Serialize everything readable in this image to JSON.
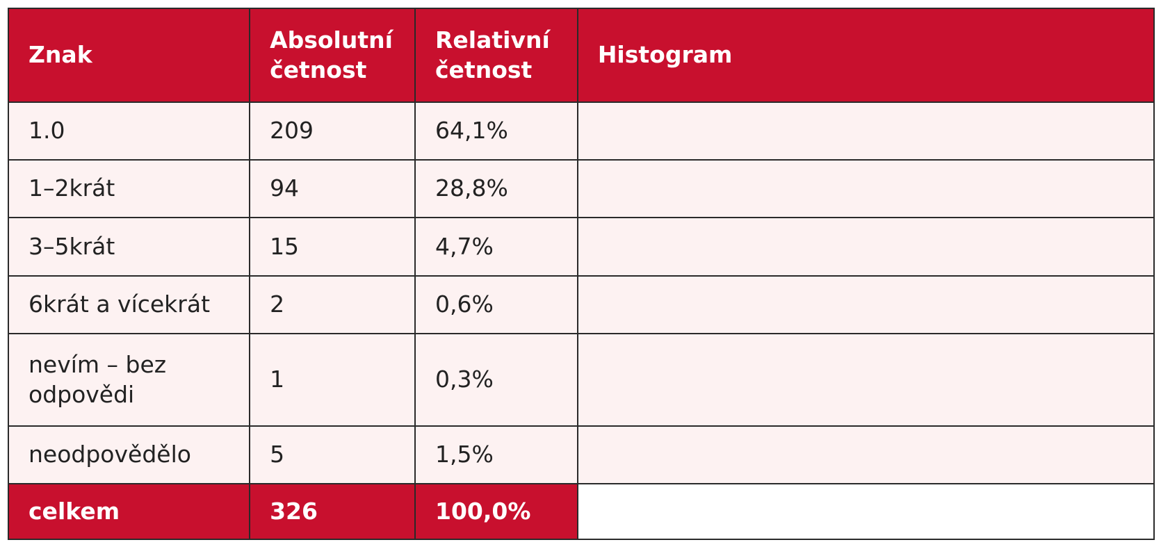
{
  "table": {
    "headers": [
      "Znak",
      "Absolutní četnost",
      "Relativní četnost",
      "Histogram"
    ],
    "rows": [
      {
        "label": "1.0",
        "absolute": "209",
        "relative": {
          "value": 64.1,
          "label": "64,1%"
        }
      },
      {
        "label": "1–2krát",
        "absolute": "94",
        "relative": {
          "value": 28.8,
          "label": "28,8%"
        }
      },
      {
        "label": "3–5krát",
        "absolute": "15",
        "relative": {
          "value": 4.7,
          "label": "4,7%"
        }
      },
      {
        "label": "6krát a vícekrát",
        "absolute": "2",
        "relative": {
          "value": 0.6,
          "label": "0,6%"
        }
      },
      {
        "label": "nevím – bez odpovědi",
        "absolute": "1",
        "relative": {
          "value": 0.3,
          "label": "0,3%"
        }
      },
      {
        "label": "neodpovědělo",
        "absolute": "5",
        "relative": {
          "value": 1.5,
          "label": "1,5%"
        }
      }
    ],
    "total": {
      "label": "celkem",
      "absolute": "326",
      "relative": "100,0%"
    }
  }
}
